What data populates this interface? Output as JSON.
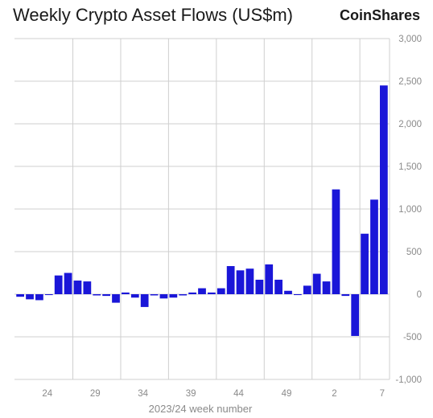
{
  "chart_data": {
    "type": "bar",
    "title": "Weekly Crypto Asset Flows (US$m)",
    "brand": "CoinShares",
    "xlabel": "2023/24 week number",
    "ylabel": "",
    "ylim": [
      -1000,
      3000
    ],
    "yticks": [
      "-1,000",
      "-500",
      "0",
      "500",
      "1,000",
      "1,500",
      "2,000",
      "2,500",
      "3,000"
    ],
    "ytick_values": [
      -1000,
      -500,
      0,
      500,
      1000,
      1500,
      2000,
      2500,
      3000
    ],
    "xtick_labels": [
      "24",
      "29",
      "34",
      "39",
      "44",
      "49",
      "2",
      "7"
    ],
    "xtick_indices": [
      3,
      8,
      13,
      18,
      23,
      28,
      33,
      38
    ],
    "y_axis_side": "right",
    "grid": true,
    "bar_color": "#1a16d8",
    "values": [
      -30,
      -60,
      -70,
      -10,
      220,
      250,
      160,
      150,
      0,
      -20,
      -100,
      20,
      -40,
      -150,
      0,
      -50,
      -40,
      0,
      20,
      70,
      20,
      70,
      330,
      280,
      300,
      170,
      350,
      170,
      40,
      -10,
      100,
      240,
      150,
      1230,
      -20,
      -490,
      710,
      1110,
      2450
    ]
  }
}
